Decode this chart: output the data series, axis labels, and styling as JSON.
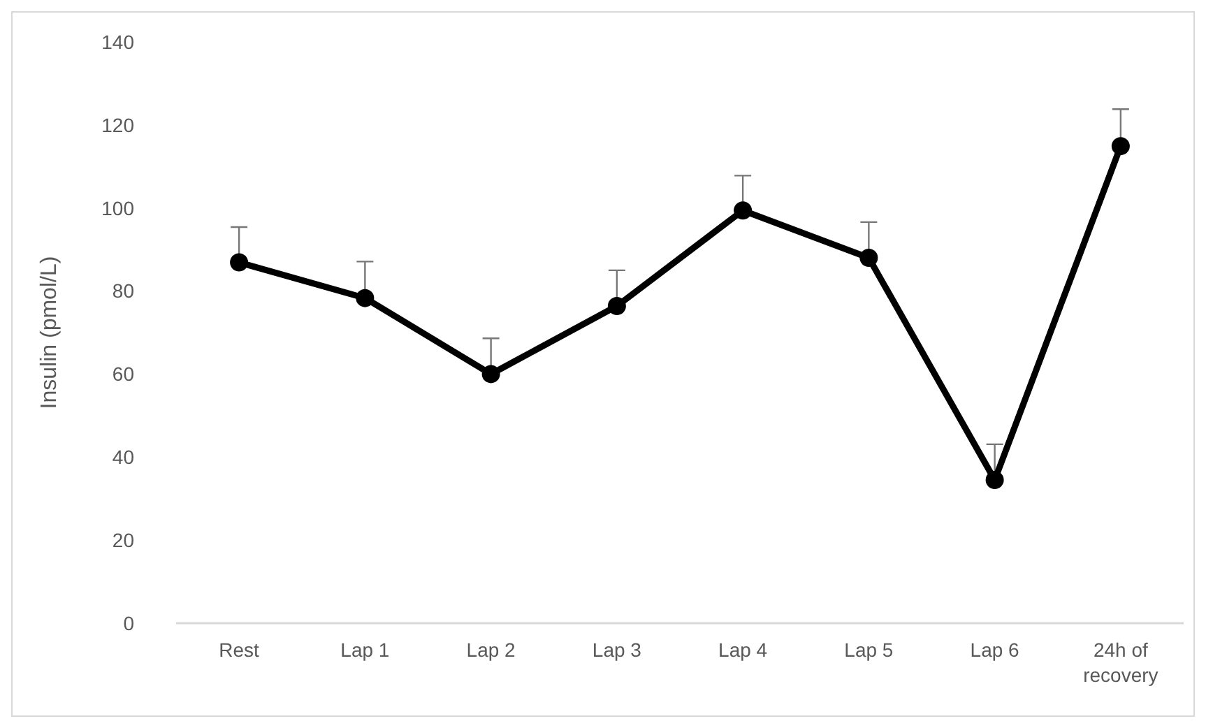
{
  "chart_data": {
    "type": "line",
    "ylabel": "Insulin (pmol/L)",
    "categories": [
      "Rest",
      "Lap 1",
      "Lap 2",
      "Lap 3",
      "Lap 4",
      "Lap 5",
      "Lap 6",
      "24h of recovery"
    ],
    "series": [
      {
        "color": "#000000",
        "values": [
          86.9,
          78.3,
          60.0,
          76.4,
          99.4,
          88.0,
          34.5,
          114.9
        ],
        "errors": [
          [
            86.9,
            95.4
          ],
          [
            78.3,
            87.1
          ],
          [
            60.0,
            68.6
          ],
          [
            76.4,
            85.0
          ],
          [
            99.4,
            107.8
          ],
          [
            88.0,
            96.6
          ],
          [
            34.5,
            43.1
          ],
          [
            114.9,
            123.8
          ]
        ]
      }
    ],
    "ylim": [
      0,
      140
    ],
    "yticks": [
      0,
      20,
      40,
      60,
      80,
      100,
      120,
      140
    ],
    "grid": false,
    "marker": "circle",
    "line_style": "solid"
  }
}
